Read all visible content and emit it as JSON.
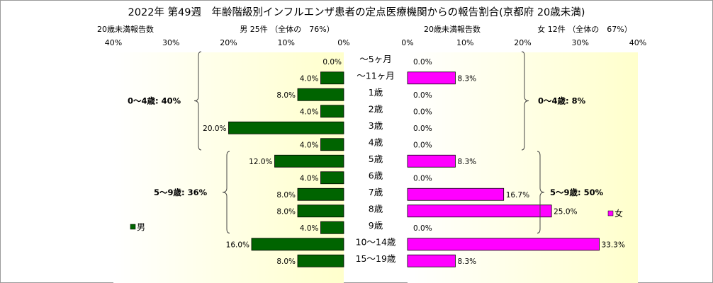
{
  "chart_data": {
    "type": "bar",
    "title": "2022年 第49週　年齢階級別インフルエンザ患者の定点医療機関からの報告割合(京都府 20歳未満)",
    "categories": [
      "～5ヶ月",
      "～11ヶ月",
      "1歳",
      "2歳",
      "3歳",
      "4歳",
      "5歳",
      "6歳",
      "7歳",
      "8歳",
      "9歳",
      "10～14歳",
      "15～19歳"
    ],
    "left_panel": {
      "header_left": "20歳未満報告数",
      "header_right": "男 25件 （全体の　76%）",
      "legend": "男",
      "color": "#006400",
      "xlim": [
        0,
        40
      ],
      "ticks": [
        "40%",
        "30%",
        "20%",
        "10%",
        "0%"
      ],
      "values": [
        0.0,
        4.0,
        8.0,
        4.0,
        20.0,
        4.0,
        12.0,
        4.0,
        8.0,
        8.0,
        4.0,
        16.0,
        8.0
      ],
      "value_labels": [
        "0.0%",
        "4.0%",
        "8.0%",
        "4.0%",
        "20.0%",
        "4.0%",
        "12.0%",
        "4.0%",
        "8.0%",
        "8.0%",
        "4.0%",
        "16.0%",
        "8.0%"
      ],
      "groups": [
        {
          "label": "0～4歳: 40%",
          "from": 0,
          "to": 5
        },
        {
          "label": "5～9歳: 36%",
          "from": 6,
          "to": 10
        }
      ]
    },
    "right_panel": {
      "header_left": "20歳未満報告数",
      "header_right": "女 12件 （全体の　67%）",
      "legend": "女",
      "color": "#ff00ff",
      "xlim": [
        0,
        40
      ],
      "ticks": [
        "0%",
        "10%",
        "20%",
        "30%",
        "40%"
      ],
      "values": [
        0.0,
        8.3,
        0.0,
        0.0,
        0.0,
        0.0,
        8.3,
        0.0,
        16.7,
        25.0,
        0.0,
        33.3,
        8.3
      ],
      "value_labels": [
        "0.0%",
        "8.3%",
        "0.0%",
        "0.0%",
        "0.0%",
        "0.0%",
        "8.3%",
        "0.0%",
        "16.7%",
        "25.0%",
        "0.0%",
        "33.3%",
        "8.3%"
      ],
      "groups": [
        {
          "label": "0～4歳: 8%",
          "from": 0,
          "to": 5
        },
        {
          "label": "5～9歳: 50%",
          "from": 6,
          "to": 10
        }
      ]
    }
  }
}
